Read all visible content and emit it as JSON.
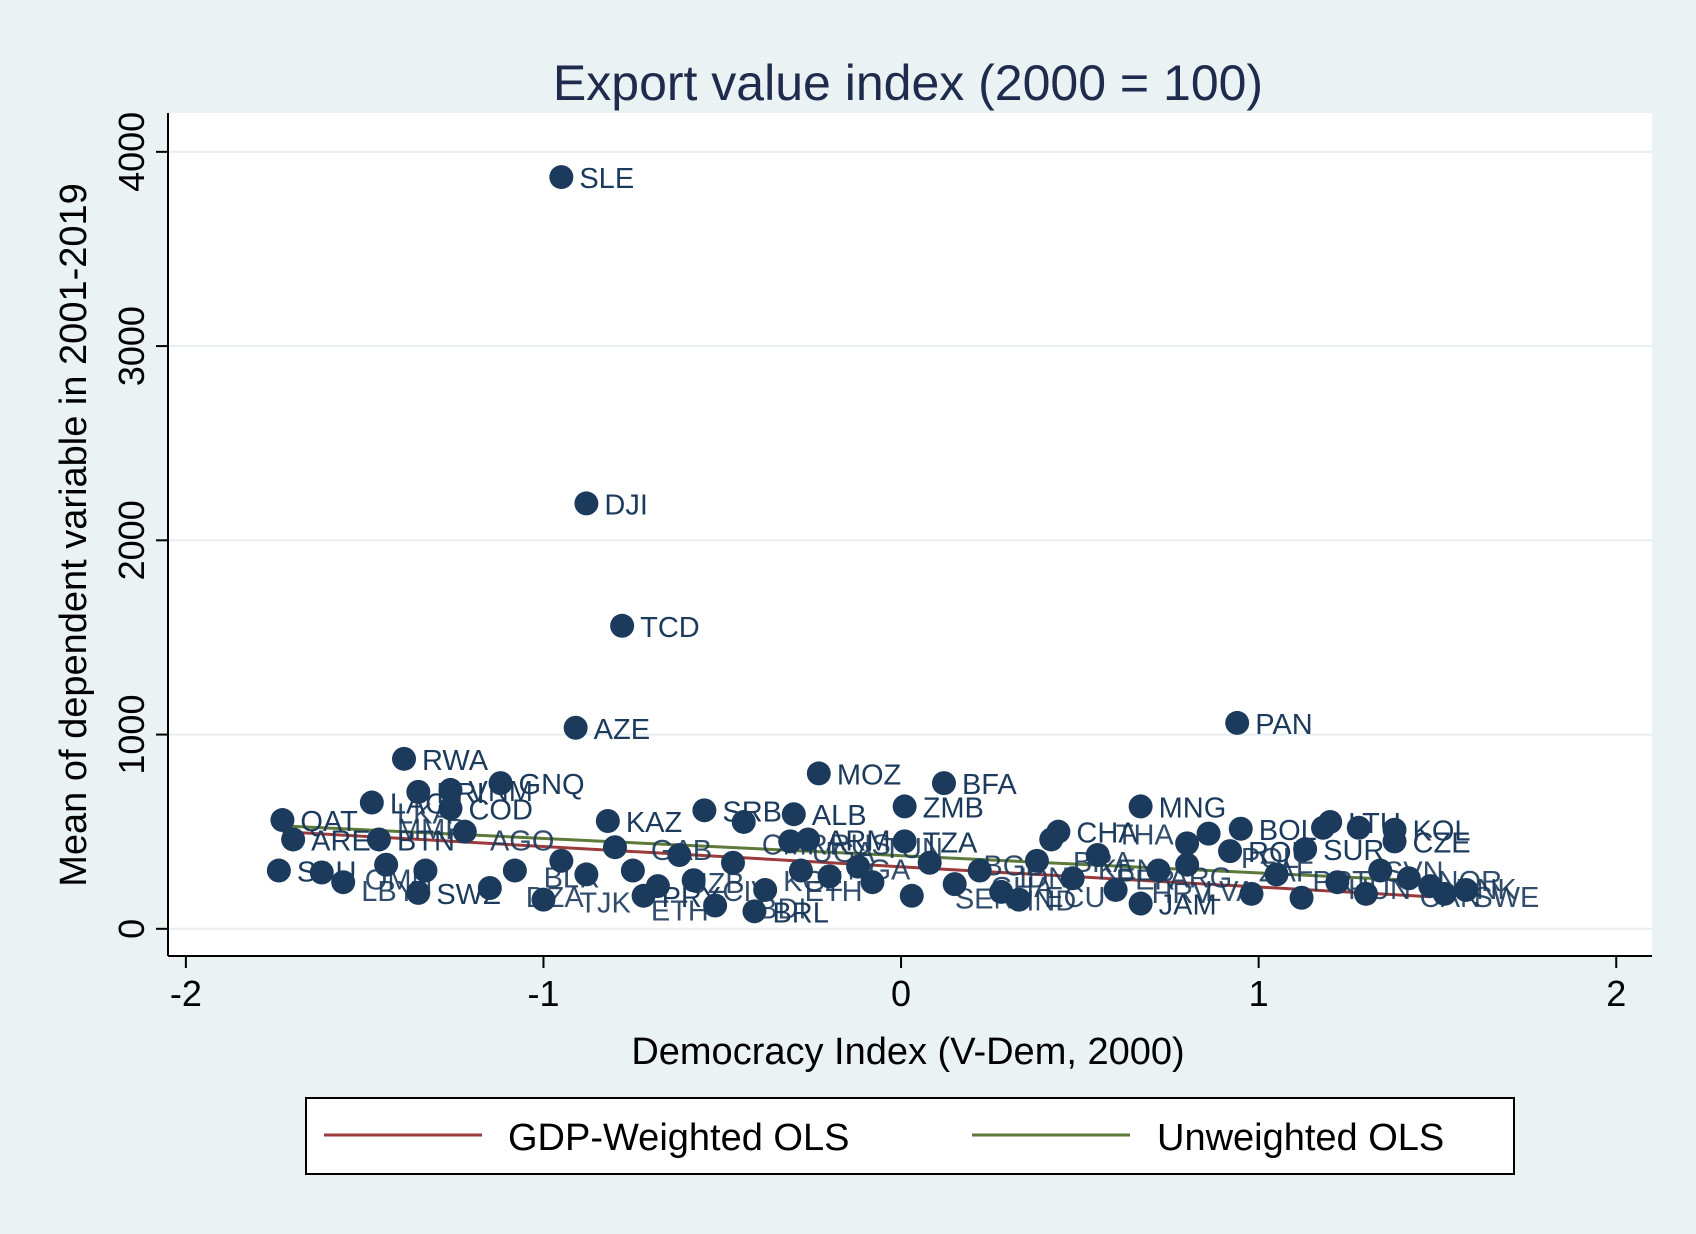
{
  "chart_data": {
    "type": "scatter",
    "title": "Export value index (2000 = 100)",
    "xlabel": "Democracy Index (V-Dem, 2000)",
    "ylabel": "Mean of dependent variable in 2001-2019",
    "xlim": [
      -2.05,
      2.1
    ],
    "ylim": [
      -140,
      4200
    ],
    "x_ticks": [
      -2,
      -1,
      0,
      1,
      2
    ],
    "y_ticks": [
      0,
      1000,
      2000,
      3000,
      4000
    ],
    "grid": "horizontal",
    "legend_position": "bottom",
    "colors": {
      "points": "#1b3a5c",
      "gdp_weighted": "#9b3b3b",
      "unweighted": "#5d7a3a",
      "background": "#eaf2f3",
      "plot_area": "#ffffff"
    },
    "points": [
      {
        "label": "SLE",
        "x": -0.95,
        "y": 3870
      },
      {
        "label": "DJI",
        "x": -0.88,
        "y": 2190
      },
      {
        "label": "TCD",
        "x": -0.78,
        "y": 1560
      },
      {
        "label": "AZE",
        "x": -0.91,
        "y": 1035
      },
      {
        "label": "PAN",
        "x": 0.94,
        "y": 1060
      },
      {
        "label": "RWA",
        "x": -1.39,
        "y": 875
      },
      {
        "label": "MOZ",
        "x": -0.23,
        "y": 800
      },
      {
        "label": "BFA",
        "x": 0.12,
        "y": 750
      },
      {
        "label": "GNQ",
        "x": -1.12,
        "y": 750
      },
      {
        "label": "ERI",
        "x": -1.35,
        "y": 705
      },
      {
        "label": "VNM",
        "x": -1.26,
        "y": 715
      },
      {
        "label": "LAO",
        "x": -1.48,
        "y": 650
      },
      {
        "label": "COD",
        "x": -1.26,
        "y": 620
      },
      {
        "label": "ZMB",
        "x": 0.01,
        "y": 630
      },
      {
        "label": "MNG",
        "x": 0.67,
        "y": 630
      },
      {
        "label": "SRB",
        "x": -0.55,
        "y": 610
      },
      {
        "label": "ALB",
        "x": -0.3,
        "y": 590
      },
      {
        "label": "QAT",
        "x": -1.73,
        "y": 560
      },
      {
        "label": "KAZ",
        "x": -0.82,
        "y": 555
      },
      {
        "label": "CHA",
        "x": 0.44,
        "y": 500
      },
      {
        "label": "BOL",
        "x": 0.95,
        "y": 515
      },
      {
        "label": "LTU",
        "x": 1.2,
        "y": 550
      },
      {
        "label": "KOL",
        "x": 1.38,
        "y": 510
      },
      {
        "label": "ARE",
        "x": -1.7,
        "y": 460
      },
      {
        "label": "BTN",
        "x": -1.46,
        "y": 460
      },
      {
        "label": "ARM",
        "x": -0.26,
        "y": 460
      },
      {
        "label": "TZA",
        "x": 0.01,
        "y": 450
      },
      {
        "label": "CZE",
        "x": 1.38,
        "y": 450
      },
      {
        "label": "ROU",
        "x": 0.92,
        "y": 400
      },
      {
        "label": "SUR",
        "x": 1.13,
        "y": 410
      },
      {
        "label": "SAU",
        "x": -1.74,
        "y": 300
      },
      {
        "label": "SWZ",
        "x": -1.35,
        "y": 185
      },
      {
        "label": "JAM",
        "x": 0.67,
        "y": 130
      },
      {
        "label": "PRY",
        "x": -0.72,
        "y": 170
      },
      {
        "label": "BRL",
        "x": -0.41,
        "y": 90
      },
      {
        "label": "",
        "x": -1.62,
        "y": 290
      },
      {
        "label": "",
        "x": -1.56,
        "y": 240
      },
      {
        "label": "",
        "x": -1.44,
        "y": 330
      },
      {
        "label": "",
        "x": -1.33,
        "y": 300
      },
      {
        "label": "",
        "x": -1.22,
        "y": 500
      },
      {
        "label": "",
        "x": -1.15,
        "y": 210
      },
      {
        "label": "",
        "x": -1.08,
        "y": 300
      },
      {
        "label": "",
        "x": -1.0,
        "y": 150
      },
      {
        "label": "",
        "x": -0.95,
        "y": 350
      },
      {
        "label": "",
        "x": -0.88,
        "y": 280
      },
      {
        "label": "",
        "x": -0.8,
        "y": 420
      },
      {
        "label": "",
        "x": -0.75,
        "y": 300
      },
      {
        "label": "",
        "x": -0.68,
        "y": 220
      },
      {
        "label": "",
        "x": -0.62,
        "y": 380
      },
      {
        "label": "",
        "x": -0.58,
        "y": 250
      },
      {
        "label": "",
        "x": -0.52,
        "y": 120
      },
      {
        "label": "",
        "x": -0.47,
        "y": 340
      },
      {
        "label": "",
        "x": -0.44,
        "y": 550
      },
      {
        "label": "",
        "x": -0.38,
        "y": 200
      },
      {
        "label": "",
        "x": -0.31,
        "y": 450
      },
      {
        "label": "",
        "x": -0.28,
        "y": 300
      },
      {
        "label": "",
        "x": -0.2,
        "y": 270
      },
      {
        "label": "",
        "x": -0.12,
        "y": 320
      },
      {
        "label": "",
        "x": -0.08,
        "y": 240
      },
      {
        "label": "",
        "x": 0.03,
        "y": 170
      },
      {
        "label": "",
        "x": 0.08,
        "y": 340
      },
      {
        "label": "",
        "x": 0.15,
        "y": 230
      },
      {
        "label": "",
        "x": 0.22,
        "y": 300
      },
      {
        "label": "",
        "x": 0.28,
        "y": 190
      },
      {
        "label": "",
        "x": 0.33,
        "y": 150
      },
      {
        "label": "",
        "x": 0.38,
        "y": 350
      },
      {
        "label": "",
        "x": 0.42,
        "y": 460
      },
      {
        "label": "",
        "x": 0.48,
        "y": 260
      },
      {
        "label": "",
        "x": 0.55,
        "y": 380
      },
      {
        "label": "",
        "x": 0.6,
        "y": 200
      },
      {
        "label": "",
        "x": 0.72,
        "y": 300
      },
      {
        "label": "",
        "x": 0.8,
        "y": 440
      },
      {
        "label": "",
        "x": 0.8,
        "y": 330
      },
      {
        "label": "",
        "x": 0.86,
        "y": 490
      },
      {
        "label": "",
        "x": 0.98,
        "y": 180
      },
      {
        "label": "",
        "x": 1.05,
        "y": 280
      },
      {
        "label": "",
        "x": 1.12,
        "y": 160
      },
      {
        "label": "",
        "x": 1.18,
        "y": 520
      },
      {
        "label": "",
        "x": 1.22,
        "y": 240
      },
      {
        "label": "",
        "x": 1.28,
        "y": 520
      },
      {
        "label": "",
        "x": 1.3,
        "y": 180
      },
      {
        "label": "",
        "x": 1.34,
        "y": 300
      },
      {
        "label": "",
        "x": 1.42,
        "y": 260
      },
      {
        "label": "",
        "x": 1.48,
        "y": 220
      },
      {
        "label": "",
        "x": 1.52,
        "y": 180
      },
      {
        "label": "",
        "x": 1.58,
        "y": 200
      }
    ],
    "series": [
      {
        "name": "GDP-Weighted OLS",
        "x": [
          -1.73,
          1.48
        ],
        "y": [
          500,
          165
        ]
      },
      {
        "name": "Unweighted OLS",
        "x": [
          -1.73,
          1.48
        ],
        "y": [
          530,
          245
        ]
      }
    ],
    "garbled_labels": [
      {
        "text": "LKA",
        "x": -1.46,
        "y": 600
      },
      {
        "text": "MMR",
        "x": -1.46,
        "y": 520
      },
      {
        "text": "AGO",
        "x": -1.2,
        "y": 460
      },
      {
        "text": "LBY",
        "x": -1.56,
        "y": 200
      },
      {
        "text": "OMN",
        "x": -1.55,
        "y": 260
      },
      {
        "text": "DZA",
        "x": -1.1,
        "y": 170
      },
      {
        "text": "BLR",
        "x": -1.05,
        "y": 270
      },
      {
        "text": "GAB",
        "x": -0.75,
        "y": 410
      },
      {
        "text": "UZB",
        "x": -0.65,
        "y": 240
      },
      {
        "text": "TJK",
        "x": -0.95,
        "y": 140
      },
      {
        "text": "ETH",
        "x": -0.75,
        "y": 100
      },
      {
        "text": "CIV",
        "x": -0.55,
        "y": 200
      },
      {
        "text": "CMR",
        "x": -0.44,
        "y": 440
      },
      {
        "text": "BDI",
        "x": -0.45,
        "y": 110
      },
      {
        "text": "UGA",
        "x": -0.3,
        "y": 400
      },
      {
        "text": "KGZ",
        "x": -0.38,
        "y": 250
      },
      {
        "text": "NGA",
        "x": -0.2,
        "y": 310
      },
      {
        "text": "RUS",
        "x": -0.25,
        "y": 440
      },
      {
        "text": "TUN",
        "x": -0.1,
        "y": 420
      },
      {
        "text": "ETH",
        "x": -0.32,
        "y": 200
      },
      {
        "text": "BGD",
        "x": 0.18,
        "y": 330
      },
      {
        "text": "IDN",
        "x": 0.28,
        "y": 270
      },
      {
        "text": "GHA",
        "x": 0.2,
        "y": 220
      },
      {
        "text": "SEN",
        "x": 0.1,
        "y": 160
      },
      {
        "text": "KEN",
        "x": 0.5,
        "y": 310
      },
      {
        "text": "BRA",
        "x": 0.43,
        "y": 350
      },
      {
        "text": "PER",
        "x": 0.55,
        "y": 260
      },
      {
        "text": "HRV",
        "x": 0.65,
        "y": 190
      },
      {
        "text": "ECU",
        "x": 0.35,
        "y": 170
      },
      {
        "text": "THA",
        "x": 0.55,
        "y": 490
      },
      {
        "text": "IND",
        "x": 0.3,
        "y": 150
      },
      {
        "text": "ARG",
        "x": 0.7,
        "y": 270
      },
      {
        "text": "ZAF",
        "x": 0.95,
        "y": 300
      },
      {
        "text": "LVA",
        "x": 0.8,
        "y": 200
      },
      {
        "text": "POL",
        "x": 0.9,
        "y": 370
      },
      {
        "text": "PRT",
        "x": 1.1,
        "y": 250
      },
      {
        "text": "HUN",
        "x": 1.2,
        "y": 210
      },
      {
        "text": "SVN",
        "x": 1.3,
        "y": 300
      },
      {
        "text": "NOR",
        "x": 1.45,
        "y": 250
      },
      {
        "text": "CAN",
        "x": 1.4,
        "y": 170
      },
      {
        "text": "DNK",
        "x": 1.5,
        "y": 210
      },
      {
        "text": "SWE",
        "x": 1.55,
        "y": 170
      }
    ]
  },
  "legend": [
    {
      "label": "GDP-Weighted OLS",
      "color": "#9b3b3b"
    },
    {
      "label": "Unweighted OLS",
      "color": "#5d7a3a"
    }
  ]
}
